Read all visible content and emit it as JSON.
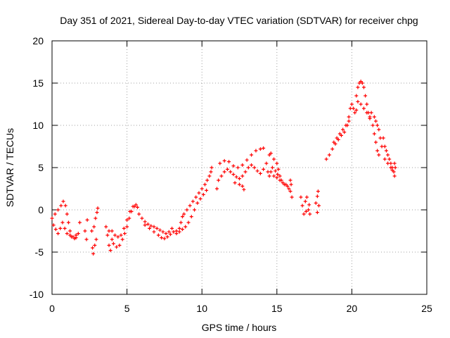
{
  "chart_data": {
    "type": "scatter",
    "title": "Day 351 of 2021, Sidereal Day-to-day VTEC variation (SDTVAR) for receiver chpg",
    "xlabel": "GPS time / hours",
    "ylabel": "SDTVAR / TECUs",
    "xlim": [
      0,
      25
    ],
    "ylim": [
      -10,
      20
    ],
    "x_ticks": [
      0,
      5,
      10,
      15,
      20,
      25
    ],
    "y_ticks": [
      -10,
      -5,
      0,
      5,
      10,
      15,
      20
    ],
    "x_tick_labels": [
      "0",
      "5",
      "10",
      "15",
      "20",
      "25"
    ],
    "y_tick_labels": [
      "-10",
      "-5",
      "0",
      "5",
      "10",
      "15",
      "20"
    ],
    "grid": true,
    "marker": "+",
    "color": "#ff0000",
    "series": [
      {
        "name": "SDTVAR",
        "points": [
          [
            0.0,
            -1.0
          ],
          [
            0.2,
            -0.5
          ],
          [
            0.4,
            0.0
          ],
          [
            0.6,
            0.5
          ],
          [
            0.75,
            1.0
          ],
          [
            0.9,
            0.5
          ],
          [
            1.0,
            -0.5
          ],
          [
            1.1,
            -1.5
          ],
          [
            1.2,
            -2.5
          ],
          [
            1.3,
            -3.2
          ],
          [
            1.5,
            -3.4
          ],
          [
            1.6,
            -3.0
          ],
          [
            0.1,
            -1.8
          ],
          [
            0.25,
            -2.3
          ],
          [
            0.4,
            -2.8
          ],
          [
            0.55,
            -2.2
          ],
          [
            0.7,
            -1.5
          ],
          [
            0.85,
            -2.2
          ],
          [
            1.0,
            -2.8
          ],
          [
            1.2,
            -3.0
          ],
          [
            1.4,
            -3.2
          ],
          [
            1.6,
            -3.3
          ],
          [
            1.75,
            -2.8
          ],
          [
            1.85,
            -1.5
          ],
          [
            2.2,
            -2.5
          ],
          [
            2.3,
            -3.5
          ],
          [
            2.35,
            -1.2
          ],
          [
            2.65,
            -2.5
          ],
          [
            2.7,
            -4.5
          ],
          [
            2.8,
            -2.0
          ],
          [
            2.9,
            -1.0
          ],
          [
            3.0,
            -0.3
          ],
          [
            3.05,
            0.2
          ],
          [
            2.75,
            -5.2
          ],
          [
            2.85,
            -4.2
          ],
          [
            2.95,
            -3.5
          ],
          [
            3.6,
            -2.0
          ],
          [
            3.7,
            -3.0
          ],
          [
            3.8,
            -4.2
          ],
          [
            3.9,
            -4.8
          ],
          [
            4.0,
            -3.5
          ],
          [
            4.1,
            -4.0
          ],
          [
            4.3,
            -4.4
          ],
          [
            4.5,
            -4.2
          ],
          [
            4.7,
            -3.5
          ],
          [
            4.85,
            -2.8
          ],
          [
            5.0,
            -2.0
          ],
          [
            5.15,
            -1.0
          ],
          [
            5.3,
            -0.2
          ],
          [
            5.5,
            0.4
          ],
          [
            5.7,
            0.3
          ],
          [
            3.8,
            -2.5
          ],
          [
            4.0,
            -2.5
          ],
          [
            4.2,
            -3.0
          ],
          [
            4.4,
            -3.2
          ],
          [
            4.6,
            -3.0
          ],
          [
            4.8,
            -2.2
          ],
          [
            5.0,
            -1.2
          ],
          [
            5.2,
            -0.2
          ],
          [
            5.4,
            0.4
          ],
          [
            5.6,
            0.6
          ],
          [
            5.8,
            -0.5
          ],
          [
            6.0,
            -1.0
          ],
          [
            6.2,
            -1.4
          ],
          [
            6.4,
            -1.7
          ],
          [
            6.6,
            -1.9
          ],
          [
            6.8,
            -2.0
          ],
          [
            7.0,
            -2.2
          ],
          [
            7.2,
            -2.4
          ],
          [
            7.4,
            -2.6
          ],
          [
            7.6,
            -2.8
          ],
          [
            7.8,
            -2.6
          ],
          [
            8.0,
            -2.2
          ],
          [
            6.2,
            -1.8
          ],
          [
            6.5,
            -2.2
          ],
          [
            6.8,
            -2.6
          ],
          [
            7.1,
            -3.0
          ],
          [
            7.3,
            -3.3
          ],
          [
            7.5,
            -3.4
          ],
          [
            7.7,
            -3.2
          ],
          [
            7.9,
            -2.9
          ],
          [
            8.1,
            -2.6
          ],
          [
            8.3,
            -2.5
          ],
          [
            8.5,
            -2.2
          ],
          [
            8.6,
            -1.5
          ],
          [
            8.7,
            -0.8
          ],
          [
            8.8,
            -0.5
          ],
          [
            9.0,
            0.0
          ],
          [
            9.2,
            0.5
          ],
          [
            9.4,
            1.0
          ],
          [
            9.6,
            1.5
          ],
          [
            9.8,
            2.0
          ],
          [
            10.0,
            2.5
          ],
          [
            10.2,
            3.0
          ],
          [
            10.35,
            3.5
          ],
          [
            8.3,
            -2.8
          ],
          [
            8.5,
            -2.6
          ],
          [
            8.7,
            -2.3
          ],
          [
            8.9,
            -2.0
          ],
          [
            9.1,
            -1.5
          ],
          [
            9.3,
            -0.8
          ],
          [
            9.5,
            0.0
          ],
          [
            9.7,
            0.8
          ],
          [
            9.9,
            1.3
          ],
          [
            10.1,
            1.8
          ],
          [
            10.3,
            2.3
          ],
          [
            10.5,
            4.0
          ],
          [
            10.6,
            4.5
          ],
          [
            10.65,
            5.0
          ],
          [
            11.0,
            2.5
          ],
          [
            11.1,
            3.5
          ],
          [
            11.3,
            4.0
          ],
          [
            11.5,
            4.5
          ],
          [
            11.7,
            4.8
          ],
          [
            11.9,
            4.5
          ],
          [
            12.1,
            4.2
          ],
          [
            12.3,
            3.9
          ],
          [
            12.5,
            3.7
          ],
          [
            12.7,
            4.0
          ],
          [
            12.9,
            4.5
          ],
          [
            13.1,
            5.0
          ],
          [
            13.3,
            5.3
          ],
          [
            13.5,
            5.0
          ],
          [
            13.7,
            4.6
          ],
          [
            13.9,
            4.3
          ],
          [
            14.1,
            4.8
          ],
          [
            11.2,
            5.5
          ],
          [
            11.5,
            5.8
          ],
          [
            11.8,
            5.7
          ],
          [
            12.1,
            5.2
          ],
          [
            12.4,
            5.0
          ],
          [
            12.7,
            5.3
          ],
          [
            13.0,
            5.9
          ],
          [
            13.3,
            6.5
          ],
          [
            13.6,
            7.0
          ],
          [
            13.9,
            7.2
          ],
          [
            14.1,
            7.3
          ],
          [
            12.2,
            3.2
          ],
          [
            12.5,
            3.0
          ],
          [
            12.7,
            2.8
          ],
          [
            12.8,
            2.4
          ],
          [
            14.3,
            5.5
          ],
          [
            14.4,
            4.5
          ],
          [
            14.5,
            4.0
          ],
          [
            14.6,
            6.7
          ],
          [
            14.8,
            6.0
          ],
          [
            15.0,
            5.5
          ],
          [
            15.1,
            4.8
          ],
          [
            15.2,
            4.0
          ],
          [
            15.3,
            3.5
          ],
          [
            15.5,
            3.0
          ],
          [
            15.7,
            2.8
          ],
          [
            15.9,
            3.5
          ],
          [
            15.95,
            3.0
          ],
          [
            14.6,
            4.5
          ],
          [
            14.8,
            4.0
          ],
          [
            15.0,
            3.8
          ],
          [
            15.2,
            3.5
          ],
          [
            15.4,
            3.2
          ],
          [
            15.6,
            3.0
          ],
          [
            15.8,
            2.5
          ],
          [
            15.9,
            2.2
          ],
          [
            14.5,
            6.5
          ],
          [
            14.7,
            5.0
          ],
          [
            14.9,
            4.6
          ],
          [
            15.05,
            4.2
          ],
          [
            16.0,
            1.5
          ],
          [
            16.6,
            1.5
          ],
          [
            16.7,
            0.5
          ],
          [
            16.8,
            -0.5
          ],
          [
            16.9,
            1.0
          ],
          [
            17.0,
            1.5
          ],
          [
            17.1,
            0.0
          ],
          [
            17.2,
            -0.5
          ],
          [
            16.95,
            -0.2
          ],
          [
            17.15,
            0.6
          ],
          [
            17.6,
            0.8
          ],
          [
            17.7,
            1.6
          ],
          [
            17.75,
            2.2
          ],
          [
            17.8,
            0.5
          ],
          [
            17.7,
            -0.3
          ],
          [
            18.3,
            6.0
          ],
          [
            18.5,
            6.5
          ],
          [
            18.7,
            7.2
          ],
          [
            18.9,
            7.8
          ],
          [
            19.1,
            8.3
          ],
          [
            19.3,
            8.8
          ],
          [
            19.5,
            9.2
          ],
          [
            19.7,
            10.0
          ],
          [
            19.8,
            10.5
          ],
          [
            18.8,
            8.0
          ],
          [
            19.0,
            8.5
          ],
          [
            19.2,
            9.0
          ],
          [
            19.4,
            9.5
          ],
          [
            19.6,
            10.0
          ],
          [
            19.8,
            11.0
          ],
          [
            19.9,
            12.0
          ],
          [
            20.0,
            12.5
          ],
          [
            20.1,
            12.0
          ],
          [
            20.2,
            11.5
          ],
          [
            20.3,
            11.8
          ],
          [
            20.3,
            13.5
          ],
          [
            20.4,
            14.5
          ],
          [
            20.5,
            15.0
          ],
          [
            20.6,
            15.2
          ],
          [
            20.7,
            15.0
          ],
          [
            20.8,
            14.5
          ],
          [
            20.9,
            13.5
          ],
          [
            21.0,
            12.5
          ],
          [
            21.1,
            11.5
          ],
          [
            21.2,
            11.0
          ],
          [
            20.4,
            12.8
          ],
          [
            20.6,
            12.5
          ],
          [
            20.8,
            12.0
          ],
          [
            21.0,
            11.5
          ],
          [
            21.2,
            10.8
          ],
          [
            21.4,
            10.0
          ],
          [
            21.5,
            9.0
          ],
          [
            21.6,
            8.0
          ],
          [
            21.7,
            7.0
          ],
          [
            21.8,
            6.5
          ],
          [
            21.3,
            11.5
          ],
          [
            21.5,
            11.0
          ],
          [
            21.6,
            10.5
          ],
          [
            21.7,
            10.0
          ],
          [
            21.8,
            9.5
          ],
          [
            21.9,
            8.5
          ],
          [
            22.0,
            7.5
          ],
          [
            22.1,
            8.5
          ],
          [
            22.2,
            7.5
          ],
          [
            22.3,
            7.0
          ],
          [
            22.4,
            6.5
          ],
          [
            22.5,
            6.0
          ],
          [
            22.6,
            5.5
          ],
          [
            22.7,
            5.0
          ],
          [
            22.8,
            4.5
          ],
          [
            22.85,
            4.0
          ],
          [
            22.2,
            6.0
          ],
          [
            22.4,
            5.5
          ],
          [
            22.6,
            5.0
          ],
          [
            22.7,
            4.7
          ],
          [
            22.9,
            5.0
          ],
          [
            22.85,
            5.5
          ]
        ]
      }
    ]
  }
}
